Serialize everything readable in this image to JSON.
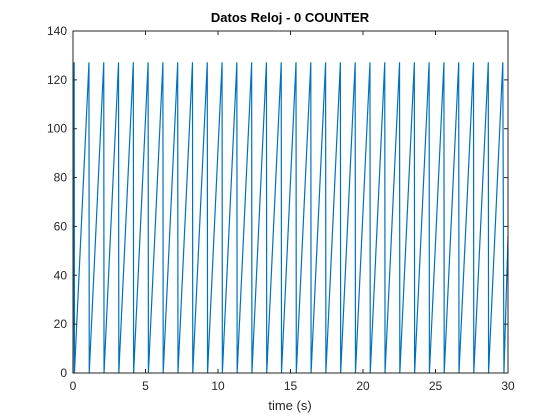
{
  "chart_data": {
    "type": "line",
    "title": "Datos Reloj - 0 COUNTER",
    "xlabel": "time (s)",
    "ylabel": "",
    "xlim": [
      0,
      30
    ],
    "ylim": [
      0,
      140
    ],
    "xticks": [
      0,
      5,
      10,
      15,
      20,
      25,
      30
    ],
    "yticks": [
      0,
      20,
      40,
      60,
      80,
      100,
      120,
      140
    ],
    "grid": false,
    "box": true,
    "series": [
      {
        "color": "#0072bd",
        "x": [
          0,
          0.08,
          0.1,
          1.1,
          1.12,
          2.12,
          2.14,
          3.14,
          3.16,
          4.16,
          4.18,
          5.18,
          5.2,
          6.2,
          6.22,
          7.22,
          7.24,
          8.24,
          8.26,
          9.26,
          9.28,
          10.28,
          10.3,
          11.3,
          11.32,
          12.32,
          12.34,
          13.34,
          13.36,
          14.36,
          14.38,
          15.38,
          15.4,
          16.4,
          16.42,
          17.42,
          17.44,
          18.44,
          18.46,
          19.46,
          19.48,
          20.48,
          20.5,
          21.5,
          21.52,
          22.52,
          22.54,
          23.54,
          23.56,
          24.56,
          24.58,
          25.58,
          25.6,
          26.6,
          26.62,
          27.62,
          27.64,
          28.64,
          28.66,
          29.64,
          29.72,
          30
        ],
        "y": [
          0,
          127,
          0,
          127,
          0,
          127,
          0,
          127,
          0,
          127,
          0,
          127,
          0,
          127,
          0,
          127,
          0,
          127,
          0,
          127,
          0,
          127,
          0,
          127,
          0,
          127,
          0,
          127,
          0,
          127,
          0,
          127,
          0,
          127,
          0,
          127,
          0,
          127,
          0,
          127,
          0,
          127,
          0,
          127,
          0,
          127,
          0,
          127,
          0,
          127,
          0,
          127,
          0,
          127,
          0,
          127,
          0,
          127,
          0,
          127,
          0,
          56
        ]
      }
    ]
  }
}
